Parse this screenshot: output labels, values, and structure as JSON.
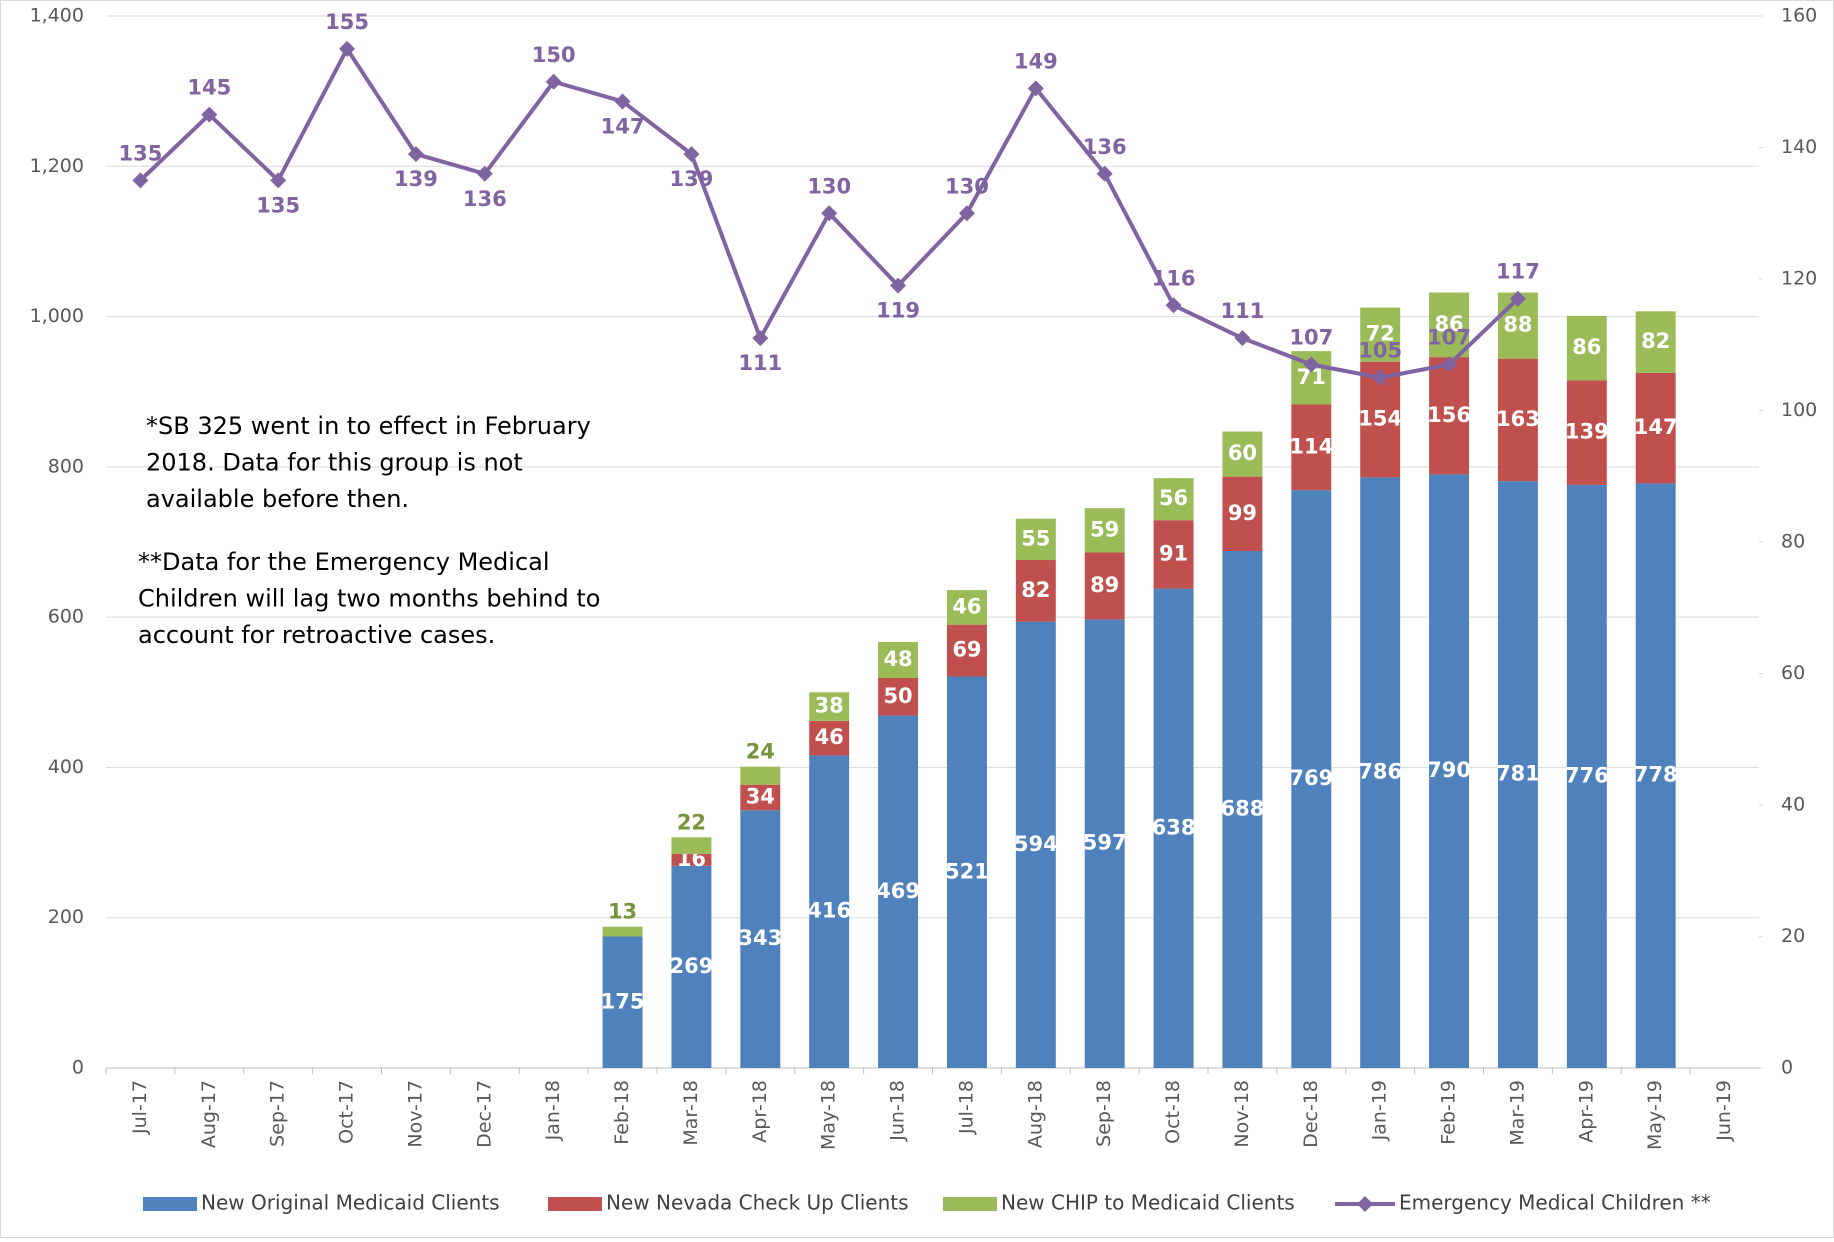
{
  "chart_data": {
    "type": "bar_line",
    "categories": [
      "Jul-17",
      "Aug-17",
      "Sep-17",
      "Oct-17",
      "Nov-17",
      "Dec-17",
      "Jan-18",
      "Feb-18",
      "Mar-18",
      "Apr-18",
      "May-18",
      "Jun-18",
      "Jul-18",
      "Aug-18",
      "Sep-18",
      "Oct-18",
      "Nov-18",
      "Dec-18",
      "Jan-19",
      "Feb-19",
      "Mar-19",
      "Apr-19",
      "May-19",
      "Jun-19"
    ],
    "series": [
      {
        "name": "New Original  Medicaid Clients",
        "color": "#4f81bd",
        "type": "bar",
        "values": [
          null,
          null,
          null,
          null,
          null,
          null,
          null,
          175,
          269,
          343,
          416,
          469,
          521,
          594,
          597,
          638,
          688,
          769,
          786,
          790,
          781,
          776,
          778,
          null
        ]
      },
      {
        "name": "New Nevada Check Up Clients",
        "color": "#c0504d",
        "type": "bar",
        "values": [
          null,
          null,
          null,
          null,
          null,
          null,
          null,
          null,
          16,
          34,
          46,
          50,
          69,
          82,
          89,
          91,
          99,
          114,
          154,
          156,
          163,
          139,
          147,
          null
        ]
      },
      {
        "name": "New CHIP to Medicaid Clients",
        "color": "#9bbb59",
        "type": "bar",
        "values": [
          null,
          null,
          null,
          null,
          null,
          null,
          null,
          13,
          22,
          24,
          38,
          48,
          46,
          55,
          59,
          56,
          60,
          71,
          72,
          86,
          88,
          86,
          82,
          null
        ]
      },
      {
        "name": "Emergency Medical Children **",
        "color": "#8064a2",
        "type": "line",
        "axis": "y2",
        "values": [
          135,
          145,
          135,
          155,
          139,
          136,
          150,
          147,
          139,
          111,
          130,
          119,
          130,
          149,
          136,
          116,
          111,
          107,
          105,
          107,
          117,
          null,
          null,
          null
        ]
      }
    ],
    "ylim": [
      0,
      1400
    ],
    "yticks": [
      0,
      200,
      400,
      600,
      800,
      {
        "value": 1000,
        "label": "1,000"
      },
      {
        "value": 1200,
        "label": "1,200"
      },
      {
        "value": 1400,
        "label": "1,400"
      }
    ],
    "y2lim": [
      0,
      160
    ],
    "y2ticks": [
      0,
      20,
      40,
      60,
      80,
      100,
      120,
      140,
      160
    ],
    "grid": true,
    "legend": "bottom",
    "annotations": [
      [
        "*SB 325 went in to effect in February",
        "2018. Data for this group is not",
        "available before then."
      ],
      [
        "**Data for the Emergency Medical",
        "Children will lag two months behind to",
        "account for retroactive cases."
      ]
    ]
  }
}
